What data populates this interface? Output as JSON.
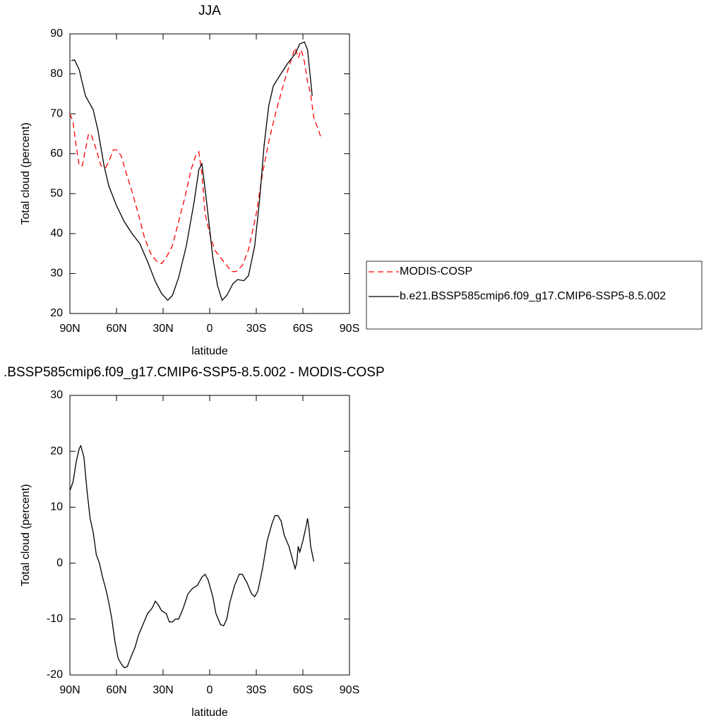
{
  "chart_data": [
    {
      "type": "line",
      "title": "JJA",
      "xlabel": "latitude",
      "ylabel": "Total cloud (percent)",
      "xlim": [
        90,
        -90
      ],
      "ylim": [
        20,
        90
      ],
      "xticks": [
        {
          "value": 90,
          "label": "90N"
        },
        {
          "value": 60,
          "label": "60N"
        },
        {
          "value": 30,
          "label": "30N"
        },
        0,
        {
          "value": -30,
          "label": "30S"
        },
        {
          "value": -60,
          "label": "60S"
        },
        {
          "value": -90,
          "label": "90S"
        }
      ],
      "yticks": [
        20,
        30,
        40,
        50,
        60,
        70,
        80,
        90
      ],
      "legend": "right",
      "series": [
        {
          "name": "MODIS-COSP",
          "color": "#ff0000",
          "style": "dashed",
          "x": [
            90,
            88,
            86,
            84,
            82,
            80,
            78,
            76,
            73,
            70,
            67,
            65,
            62,
            60,
            57,
            54,
            50,
            46,
            42,
            38,
            34,
            31,
            28,
            24,
            20,
            16,
            12,
            9,
            7,
            5,
            3,
            0,
            -3,
            -7,
            -11,
            -14,
            -17,
            -21,
            -25,
            -30,
            -34,
            -38,
            -43,
            -48,
            -52,
            -55,
            -57,
            -59,
            -61,
            -63,
            -65,
            -67,
            -70,
            -72
          ],
          "values": [
            70,
            68,
            62,
            57,
            57,
            61,
            65,
            64.5,
            61,
            57,
            56.5,
            58,
            61,
            61,
            59.5,
            55.5,
            50.5,
            45,
            39,
            35,
            33,
            32.5,
            34,
            37,
            43,
            49,
            56,
            59.5,
            60.5,
            55,
            45,
            40,
            36,
            34,
            32,
            30.5,
            30.5,
            32,
            36,
            45,
            55,
            63,
            71,
            78,
            83,
            86.5,
            84,
            86,
            83,
            78,
            75,
            69,
            66,
            63.5
          ]
        },
        {
          "name": "b.e21.BSSP585cmip6.f09_g17.CMIP6-SSP5-8.5.002",
          "color": "#000000",
          "style": "solid",
          "x": [
            89,
            87,
            84,
            80,
            75,
            72,
            68,
            65,
            60,
            55,
            50,
            45,
            40,
            35,
            31,
            27,
            24,
            20,
            15,
            10,
            7,
            5,
            2,
            -2,
            -5,
            -8,
            -11,
            -15,
            -18,
            -22,
            -25,
            -29,
            -32,
            -35,
            -38,
            -41,
            -45,
            -50,
            -55,
            -58,
            -61,
            -63,
            -66
          ],
          "values": [
            83.3,
            83.5,
            81,
            74.5,
            71,
            66,
            57,
            52,
            47,
            43,
            40,
            37.5,
            33,
            28,
            25,
            23.3,
            24.5,
            29,
            37,
            48,
            56,
            57.5,
            48,
            34,
            27,
            23.3,
            24.5,
            27.5,
            28.5,
            28.2,
            29.5,
            37,
            48,
            62,
            72,
            77,
            79.5,
            82.5,
            85,
            87.5,
            88,
            86,
            74.5
          ]
        }
      ]
    },
    {
      "type": "line",
      "title": ".BSSP585cmip6.f09_g17.CMIP6-SSP5-8.5.002 - MODIS-COSP",
      "xlabel": "latitude",
      "ylabel": "Total cloud (percent)",
      "xlim": [
        90,
        -90
      ],
      "ylim": [
        -20,
        30
      ],
      "xticks": [
        {
          "value": 90,
          "label": "90N"
        },
        {
          "value": 60,
          "label": "60N"
        },
        {
          "value": 30,
          "label": "30N"
        },
        0,
        {
          "value": -30,
          "label": "30S"
        },
        {
          "value": -60,
          "label": "60S"
        },
        {
          "value": -90,
          "label": "90S"
        }
      ],
      "yticks": [
        -20,
        -10,
        0,
        10,
        20,
        30
      ],
      "series": [
        {
          "color": "#000000",
          "style": "solid",
          "x": [
            90,
            88,
            86,
            84,
            83,
            81,
            79,
            77,
            75,
            73,
            71,
            69,
            67,
            65,
            63,
            61,
            59,
            57,
            55,
            53,
            51,
            48,
            46,
            43,
            40,
            37,
            35,
            33,
            31,
            28,
            26,
            24,
            22,
            20,
            17,
            14,
            11,
            8,
            5,
            3,
            1,
            -2,
            -4,
            -7,
            -9,
            -11,
            -13,
            -16,
            -19,
            -21,
            -24,
            -27,
            -29,
            -31,
            -34,
            -37,
            -40,
            -42,
            -44,
            -46,
            -48,
            -51,
            -53,
            -55,
            -56,
            -57,
            -58,
            -60,
            -62,
            -63,
            -64,
            -65,
            -67
          ],
          "values": [
            13,
            14.5,
            18,
            20.5,
            21,
            19,
            13,
            8,
            5.5,
            1.5,
            0,
            -2.5,
            -4.5,
            -7,
            -10,
            -14,
            -17,
            -18,
            -18.7,
            -18.5,
            -17,
            -15,
            -13,
            -11,
            -9,
            -8,
            -6.8,
            -7.5,
            -8.5,
            -9,
            -10.5,
            -10.5,
            -10,
            -10,
            -8,
            -5.5,
            -4.5,
            -4,
            -2.5,
            -2,
            -3,
            -6,
            -9,
            -11,
            -11.2,
            -10,
            -7,
            -4,
            -2,
            -2,
            -3.5,
            -5.5,
            -6,
            -5,
            -1,
            4,
            7,
            8.5,
            8.5,
            7.5,
            5,
            3,
            1,
            -1,
            0,
            3,
            2,
            4,
            6.5,
            8,
            6,
            3,
            0.3
          ]
        }
      ]
    }
  ]
}
